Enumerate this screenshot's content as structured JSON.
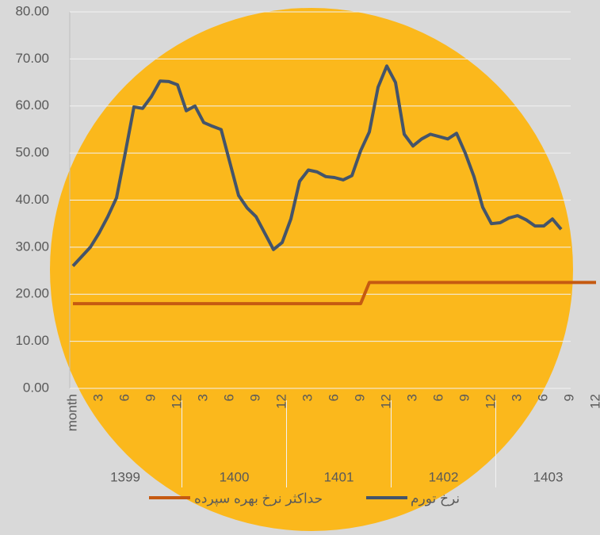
{
  "chart_data": {
    "type": "line",
    "categories": [
      "month",
      null,
      null,
      "3",
      null,
      null,
      "6",
      null,
      null,
      "9",
      null,
      null,
      "12",
      null,
      null,
      "3",
      null,
      null,
      "6",
      null,
      null,
      "9",
      null,
      null,
      "12",
      null,
      null,
      "3",
      null,
      null,
      "6",
      null,
      null,
      "9",
      null,
      null,
      "12",
      null,
      null,
      "3",
      null,
      null,
      "6",
      null,
      null,
      "9",
      null,
      null,
      "12",
      null,
      null,
      "3",
      null,
      null,
      "6",
      null,
      null,
      "9",
      null,
      null,
      "12"
    ],
    "groups": [
      {
        "label": "1399",
        "span": [
          0,
          12
        ]
      },
      {
        "label": "1400",
        "span": [
          13,
          24
        ]
      },
      {
        "label": "1401",
        "span": [
          25,
          36
        ]
      },
      {
        "label": "1402",
        "span": [
          37,
          48
        ]
      },
      {
        "label": "1403",
        "span": [
          49,
          60
        ]
      }
    ],
    "series": [
      {
        "name": "حداکثر نرخ بهره سپرده",
        "color": "#c55a11",
        "values": [
          18,
          18,
          18,
          18,
          18,
          18,
          18,
          18,
          18,
          18,
          18,
          18,
          18,
          18,
          18,
          18,
          18,
          18,
          18,
          18,
          18,
          18,
          18,
          18,
          18,
          18,
          18,
          18,
          18,
          18,
          18,
          18,
          18,
          18,
          22.5,
          22.5,
          22.5,
          22.5,
          22.5,
          22.5,
          22.5,
          22.5,
          22.5,
          22.5,
          22.5,
          22.5,
          22.5,
          22.5,
          22.5,
          22.5,
          22.5,
          22.5,
          22.5,
          22.5,
          22.5,
          22.5,
          22.5,
          22.5,
          22.5,
          22.5,
          22.5
        ]
      },
      {
        "name": "نرخ تورم",
        "color": "#44546a",
        "values": [
          26,
          28,
          30,
          33,
          36.5,
          40.5,
          50,
          59.8,
          59.5,
          62,
          65.3,
          65.2,
          64.5,
          59,
          60,
          56.5,
          55.7,
          55,
          48,
          41,
          38.3,
          36.5,
          33,
          29.5,
          31,
          36,
          44,
          46.4,
          46,
          45,
          44.8,
          44.3,
          45.2,
          50.5,
          54.5,
          64,
          68.5,
          65,
          54,
          51.5,
          53,
          54,
          53.5,
          53,
          54.2,
          50,
          45,
          38.5,
          35,
          35.2,
          36.2,
          36.7,
          35.8,
          34.5,
          34.5,
          36,
          33.8,
          null,
          null,
          null,
          null
        ]
      }
    ],
    "ylim": [
      0,
      80
    ],
    "yticks": [
      {
        "value": 0,
        "label": "0.00"
      },
      {
        "value": 10,
        "label": "10.00"
      },
      {
        "value": 20,
        "label": "20.00"
      },
      {
        "value": 30,
        "label": "30.00"
      },
      {
        "value": 40,
        "label": "40.00"
      },
      {
        "value": 50,
        "label": "50.00"
      },
      {
        "value": 60,
        "label": "60.00"
      },
      {
        "value": 70,
        "label": "70.00"
      },
      {
        "value": 80,
        "label": "80.00"
      }
    ],
    "grid": true
  }
}
